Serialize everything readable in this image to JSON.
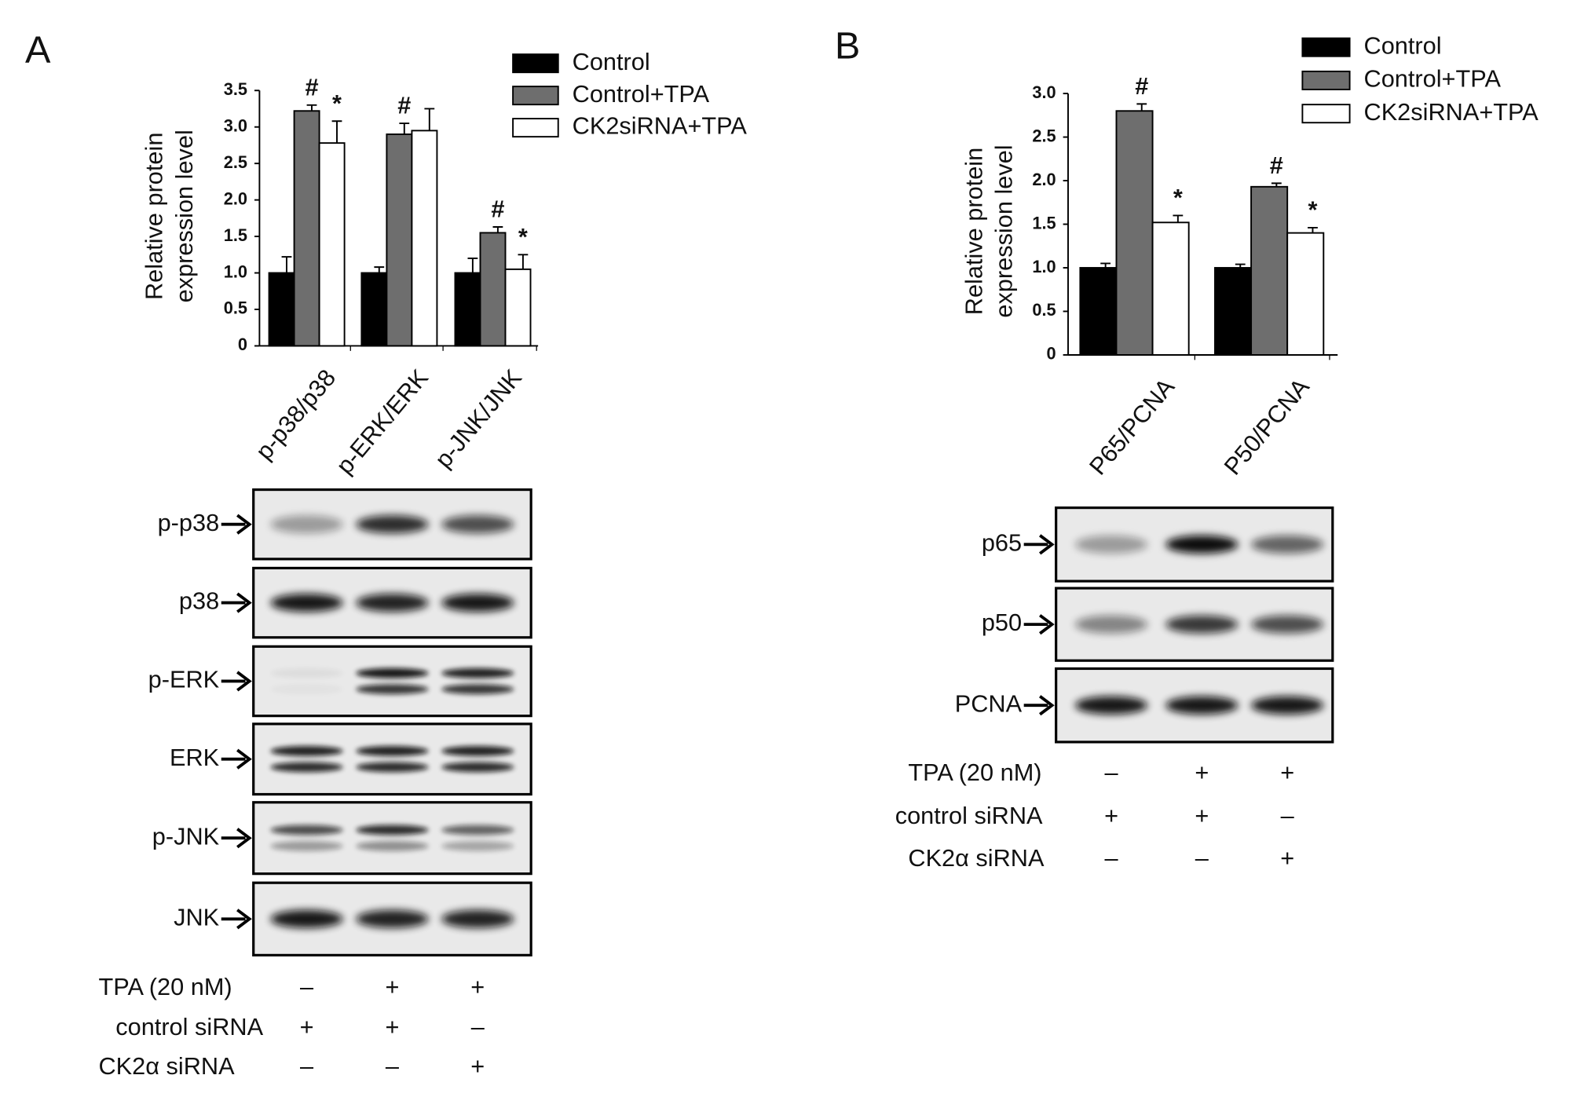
{
  "chart_data": [
    {
      "type": "bar",
      "panel": "A",
      "ylabel": [
        "Relative protein",
        "expression level"
      ],
      "categories": [
        "p-p38/p38",
        "p-ERK/ERK",
        "p-JNK/JNK"
      ],
      "ylim": [
        0,
        3.5
      ],
      "yticks": [
        0,
        0.5,
        {
          "value": 1,
          "label": "1.0"
        },
        1.5,
        {
          "value": 2,
          "label": "2.0"
        },
        2.5,
        {
          "value": 3,
          "label": "3.0"
        },
        3.5
      ],
      "series": [
        {
          "name": "Control",
          "color": "#000000",
          "values": [
            1.0,
            1.0,
            1.0
          ],
          "errors": [
            0.22,
            0.08,
            0.2
          ],
          "significance": [
            null,
            null,
            null
          ]
        },
        {
          "name": "Control+TPA",
          "color": "#6e6e6e",
          "values": [
            3.22,
            2.9,
            1.55
          ],
          "errors": [
            0.08,
            0.15,
            0.08
          ],
          "significance": [
            "#",
            "#",
            "#"
          ]
        },
        {
          "name": "CK2siRNA+TPA",
          "color": "#ffffff",
          "values": [
            2.78,
            2.95,
            1.05
          ],
          "errors": [
            0.3,
            0.3,
            0.2
          ],
          "significance": [
            "*",
            null,
            "*"
          ]
        }
      ]
    },
    {
      "type": "bar",
      "panel": "B",
      "ylabel": [
        "Relative protein",
        "expression level"
      ],
      "categories": [
        "P65/PCNA",
        "P50/PCNA"
      ],
      "ylim": [
        0,
        3.0
      ],
      "yticks": [
        0,
        0.5,
        {
          "value": 1,
          "label": "1.0"
        },
        1.5,
        {
          "value": 2,
          "label": "2.0"
        },
        2.5,
        {
          "value": 3,
          "label": "3.0"
        }
      ],
      "series": [
        {
          "name": "Control",
          "color": "#000000",
          "values": [
            1.0,
            1.0
          ],
          "errors": [
            0.05,
            0.04
          ],
          "significance": [
            null,
            null
          ]
        },
        {
          "name": "Control+TPA",
          "color": "#6e6e6e",
          "values": [
            2.8,
            1.93
          ],
          "errors": [
            0.08,
            0.04
          ],
          "significance": [
            "#",
            "#"
          ]
        },
        {
          "name": "CK2siRNA+TPA",
          "color": "#ffffff",
          "values": [
            1.52,
            1.4
          ],
          "errors": [
            0.08,
            0.06
          ],
          "significance": [
            "*",
            "*"
          ]
        }
      ]
    }
  ],
  "blots": [
    {
      "proteins": [
        "p-p38",
        "p38",
        "p-ERK",
        "ERK",
        "p-JNK",
        "JNK"
      ],
      "conditions": [
        {
          "name": "TPA (20 nM)",
          "signs": [
            "–",
            "+",
            "+"
          ]
        },
        {
          "name": "control siRNA",
          "signs": [
            "+",
            "+",
            "–"
          ]
        },
        {
          "name": "CK2α siRNA",
          "signs": [
            "–",
            "–",
            "+"
          ]
        }
      ]
    },
    {
      "proteins": [
        "p65",
        "p50",
        "PCNA"
      ],
      "conditions": [
        {
          "name": "TPA (20 nM)",
          "signs": [
            "–",
            "+",
            "+"
          ]
        },
        {
          "name": "control siRNA",
          "signs": [
            "+",
            "+",
            "–"
          ]
        },
        {
          "name": "CK2α siRNA",
          "signs": [
            "–",
            "–",
            "+"
          ]
        }
      ]
    }
  ]
}
